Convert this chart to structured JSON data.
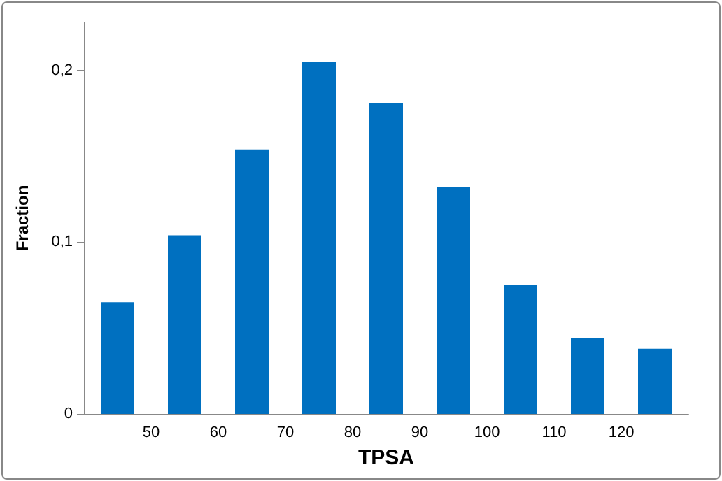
{
  "chart_data": {
    "type": "histogram",
    "xlabel": "TPSA",
    "ylabel": "Fraction",
    "bins": [
      40,
      50,
      60,
      70,
      80,
      90,
      100,
      110,
      120,
      130
    ],
    "values": [
      0.065,
      0.104,
      0.154,
      0.205,
      0.181,
      0.132,
      0.075,
      0.044,
      0.038
    ],
    "color": "#0070c0",
    "xlim": [
      40,
      130
    ],
    "xticks": [
      50,
      60,
      70,
      80,
      90,
      100,
      110,
      120
    ],
    "ylim": [
      0,
      0.228
    ],
    "yticks": [
      0,
      {
        "value": 0.1,
        "label": "0,1"
      },
      {
        "value": 0.2,
        "label": "0,2"
      }
    ],
    "grid": false
  }
}
